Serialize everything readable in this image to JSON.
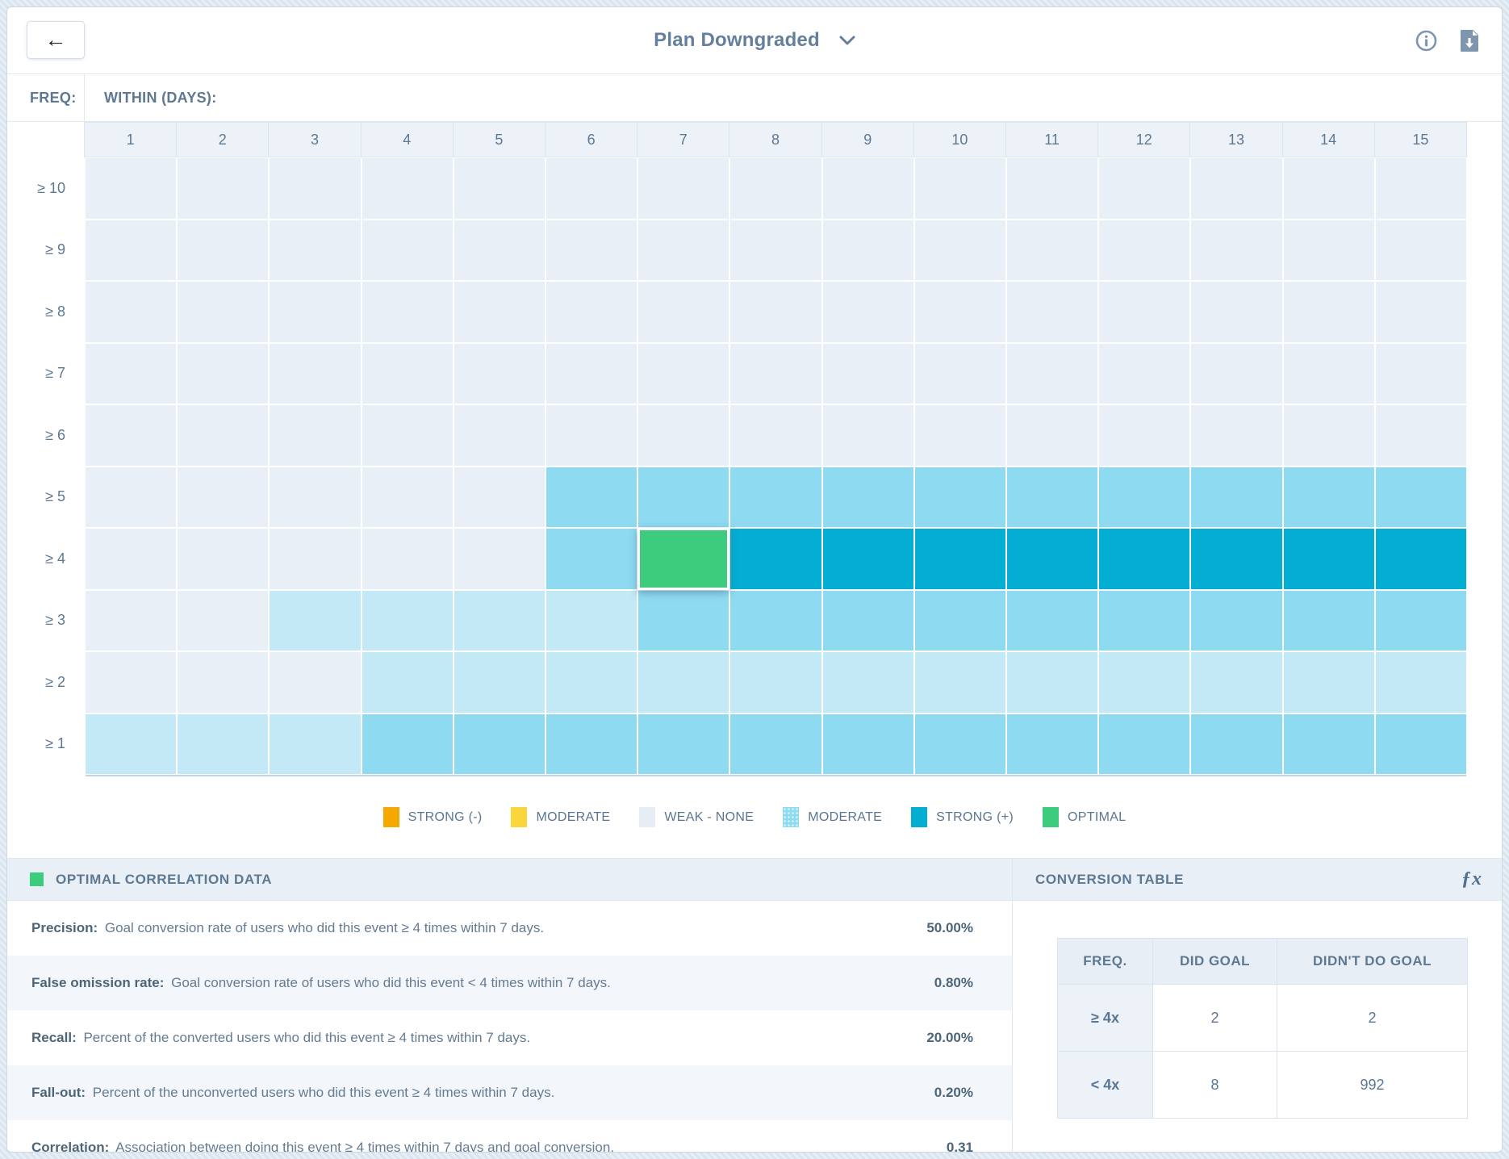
{
  "header": {
    "title": "Plan Downgraded",
    "back_icon": "←"
  },
  "grid": {
    "freq_label": "FREQ:",
    "within_label": "WITHIN (DAYS):",
    "columns": [
      "1",
      "2",
      "3",
      "4",
      "5",
      "6",
      "7",
      "8",
      "9",
      "10",
      "11",
      "12",
      "13",
      "14",
      "15"
    ],
    "rows": [
      {
        "label": "≥ 10",
        "cells": [
          "weak",
          "weak",
          "weak",
          "weak",
          "weak",
          "weak",
          "weak",
          "weak",
          "weak",
          "weak",
          "weak",
          "weak",
          "weak",
          "weak",
          "weak"
        ]
      },
      {
        "label": "≥ 9",
        "cells": [
          "weak",
          "weak",
          "weak",
          "weak",
          "weak",
          "weak",
          "weak",
          "weak",
          "weak",
          "weak",
          "weak",
          "weak",
          "weak",
          "weak",
          "weak"
        ]
      },
      {
        "label": "≥ 8",
        "cells": [
          "weak",
          "weak",
          "weak",
          "weak",
          "weak",
          "weak",
          "weak",
          "weak",
          "weak",
          "weak",
          "weak",
          "weak",
          "weak",
          "weak",
          "weak"
        ]
      },
      {
        "label": "≥ 7",
        "cells": [
          "weak",
          "weak",
          "weak",
          "weak",
          "weak",
          "weak",
          "weak",
          "weak",
          "weak",
          "weak",
          "weak",
          "weak",
          "weak",
          "weak",
          "weak"
        ]
      },
      {
        "label": "≥ 6",
        "cells": [
          "weak",
          "weak",
          "weak",
          "weak",
          "weak",
          "weak",
          "weak",
          "weak",
          "weak",
          "weak",
          "weak",
          "weak",
          "weak",
          "weak",
          "weak"
        ]
      },
      {
        "label": "≥ 5",
        "cells": [
          "weak",
          "weak",
          "weak",
          "weak",
          "weak",
          "moderate",
          "moderate",
          "moderate",
          "moderate",
          "moderate",
          "moderate",
          "moderate",
          "moderate",
          "moderate",
          "moderate"
        ]
      },
      {
        "label": "≥ 4",
        "cells": [
          "weak",
          "weak",
          "weak",
          "weak",
          "weak",
          "moderate",
          "optimal",
          "strong",
          "strong",
          "strong",
          "strong",
          "strong",
          "strong",
          "strong",
          "strong"
        ]
      },
      {
        "label": "≥ 3",
        "cells": [
          "weak",
          "weak",
          "light",
          "light",
          "light",
          "light",
          "moderate",
          "moderate",
          "moderate",
          "moderate",
          "moderate",
          "moderate",
          "moderate",
          "moderate",
          "moderate"
        ]
      },
      {
        "label": "≥ 2",
        "cells": [
          "weak",
          "weak",
          "weak",
          "light",
          "light",
          "light",
          "light",
          "light",
          "light",
          "light",
          "light",
          "light",
          "light",
          "light",
          "light"
        ]
      },
      {
        "label": "≥ 1",
        "cells": [
          "light",
          "light",
          "light",
          "moderate",
          "moderate",
          "moderate",
          "moderate",
          "moderate",
          "moderate",
          "moderate",
          "moderate",
          "moderate",
          "moderate",
          "moderate",
          "moderate"
        ]
      }
    ]
  },
  "legend": {
    "items": [
      {
        "label": "STRONG (-)",
        "swatch": "strong-neg"
      },
      {
        "label": "MODERATE",
        "swatch": "moderate-neg"
      },
      {
        "label": "WEAK - NONE",
        "swatch": "weak"
      },
      {
        "label": "MODERATE",
        "swatch": "moderate-pos"
      },
      {
        "label": "STRONG (+)",
        "swatch": "strong-pos"
      },
      {
        "label": "OPTIMAL",
        "swatch": "optimal"
      }
    ]
  },
  "colors": {
    "weak": "#e9eff7",
    "weak_swatch": "#e7edf5",
    "light": "#c3e9f7",
    "moderate": "#8edaf1",
    "strong": "#04aed3",
    "optimal": "#3dcb7d",
    "strong_neg": "#f5a800",
    "moderate_neg": "#f8d63c"
  },
  "optimal_panel": {
    "title": "OPTIMAL CORRELATION DATA",
    "rows": [
      {
        "label": "Precision:",
        "description": "Goal conversion rate of users who did this event ≥ 4 times within 7 days.",
        "value": "50.00%"
      },
      {
        "label": "False omission rate:",
        "description": "Goal conversion rate of users who did this event < 4 times within 7 days.",
        "value": "0.80%"
      },
      {
        "label": "Recall:",
        "description": "Percent of the converted users who did this event ≥ 4 times within 7 days.",
        "value": "20.00%"
      },
      {
        "label": "Fall-out:",
        "description": "Percent of the unconverted users who did this event ≥ 4 times within 7 days.",
        "value": "0.20%"
      },
      {
        "label": "Correlation:",
        "description": "Association between doing this event ≥ 4 times within 7 days and goal conversion.",
        "value": "0.31"
      }
    ]
  },
  "conversion_panel": {
    "title": "CONVERSION TABLE",
    "fx_icon": "ƒx",
    "table": {
      "headers": [
        "FREQ.",
        "DID GOAL",
        "DIDN'T DO GOAL"
      ],
      "rows": [
        {
          "freq": "≥ 4x",
          "did": "2",
          "didnt": "2"
        },
        {
          "freq": "< 4x",
          "did": "8",
          "didnt": "992"
        }
      ]
    }
  }
}
